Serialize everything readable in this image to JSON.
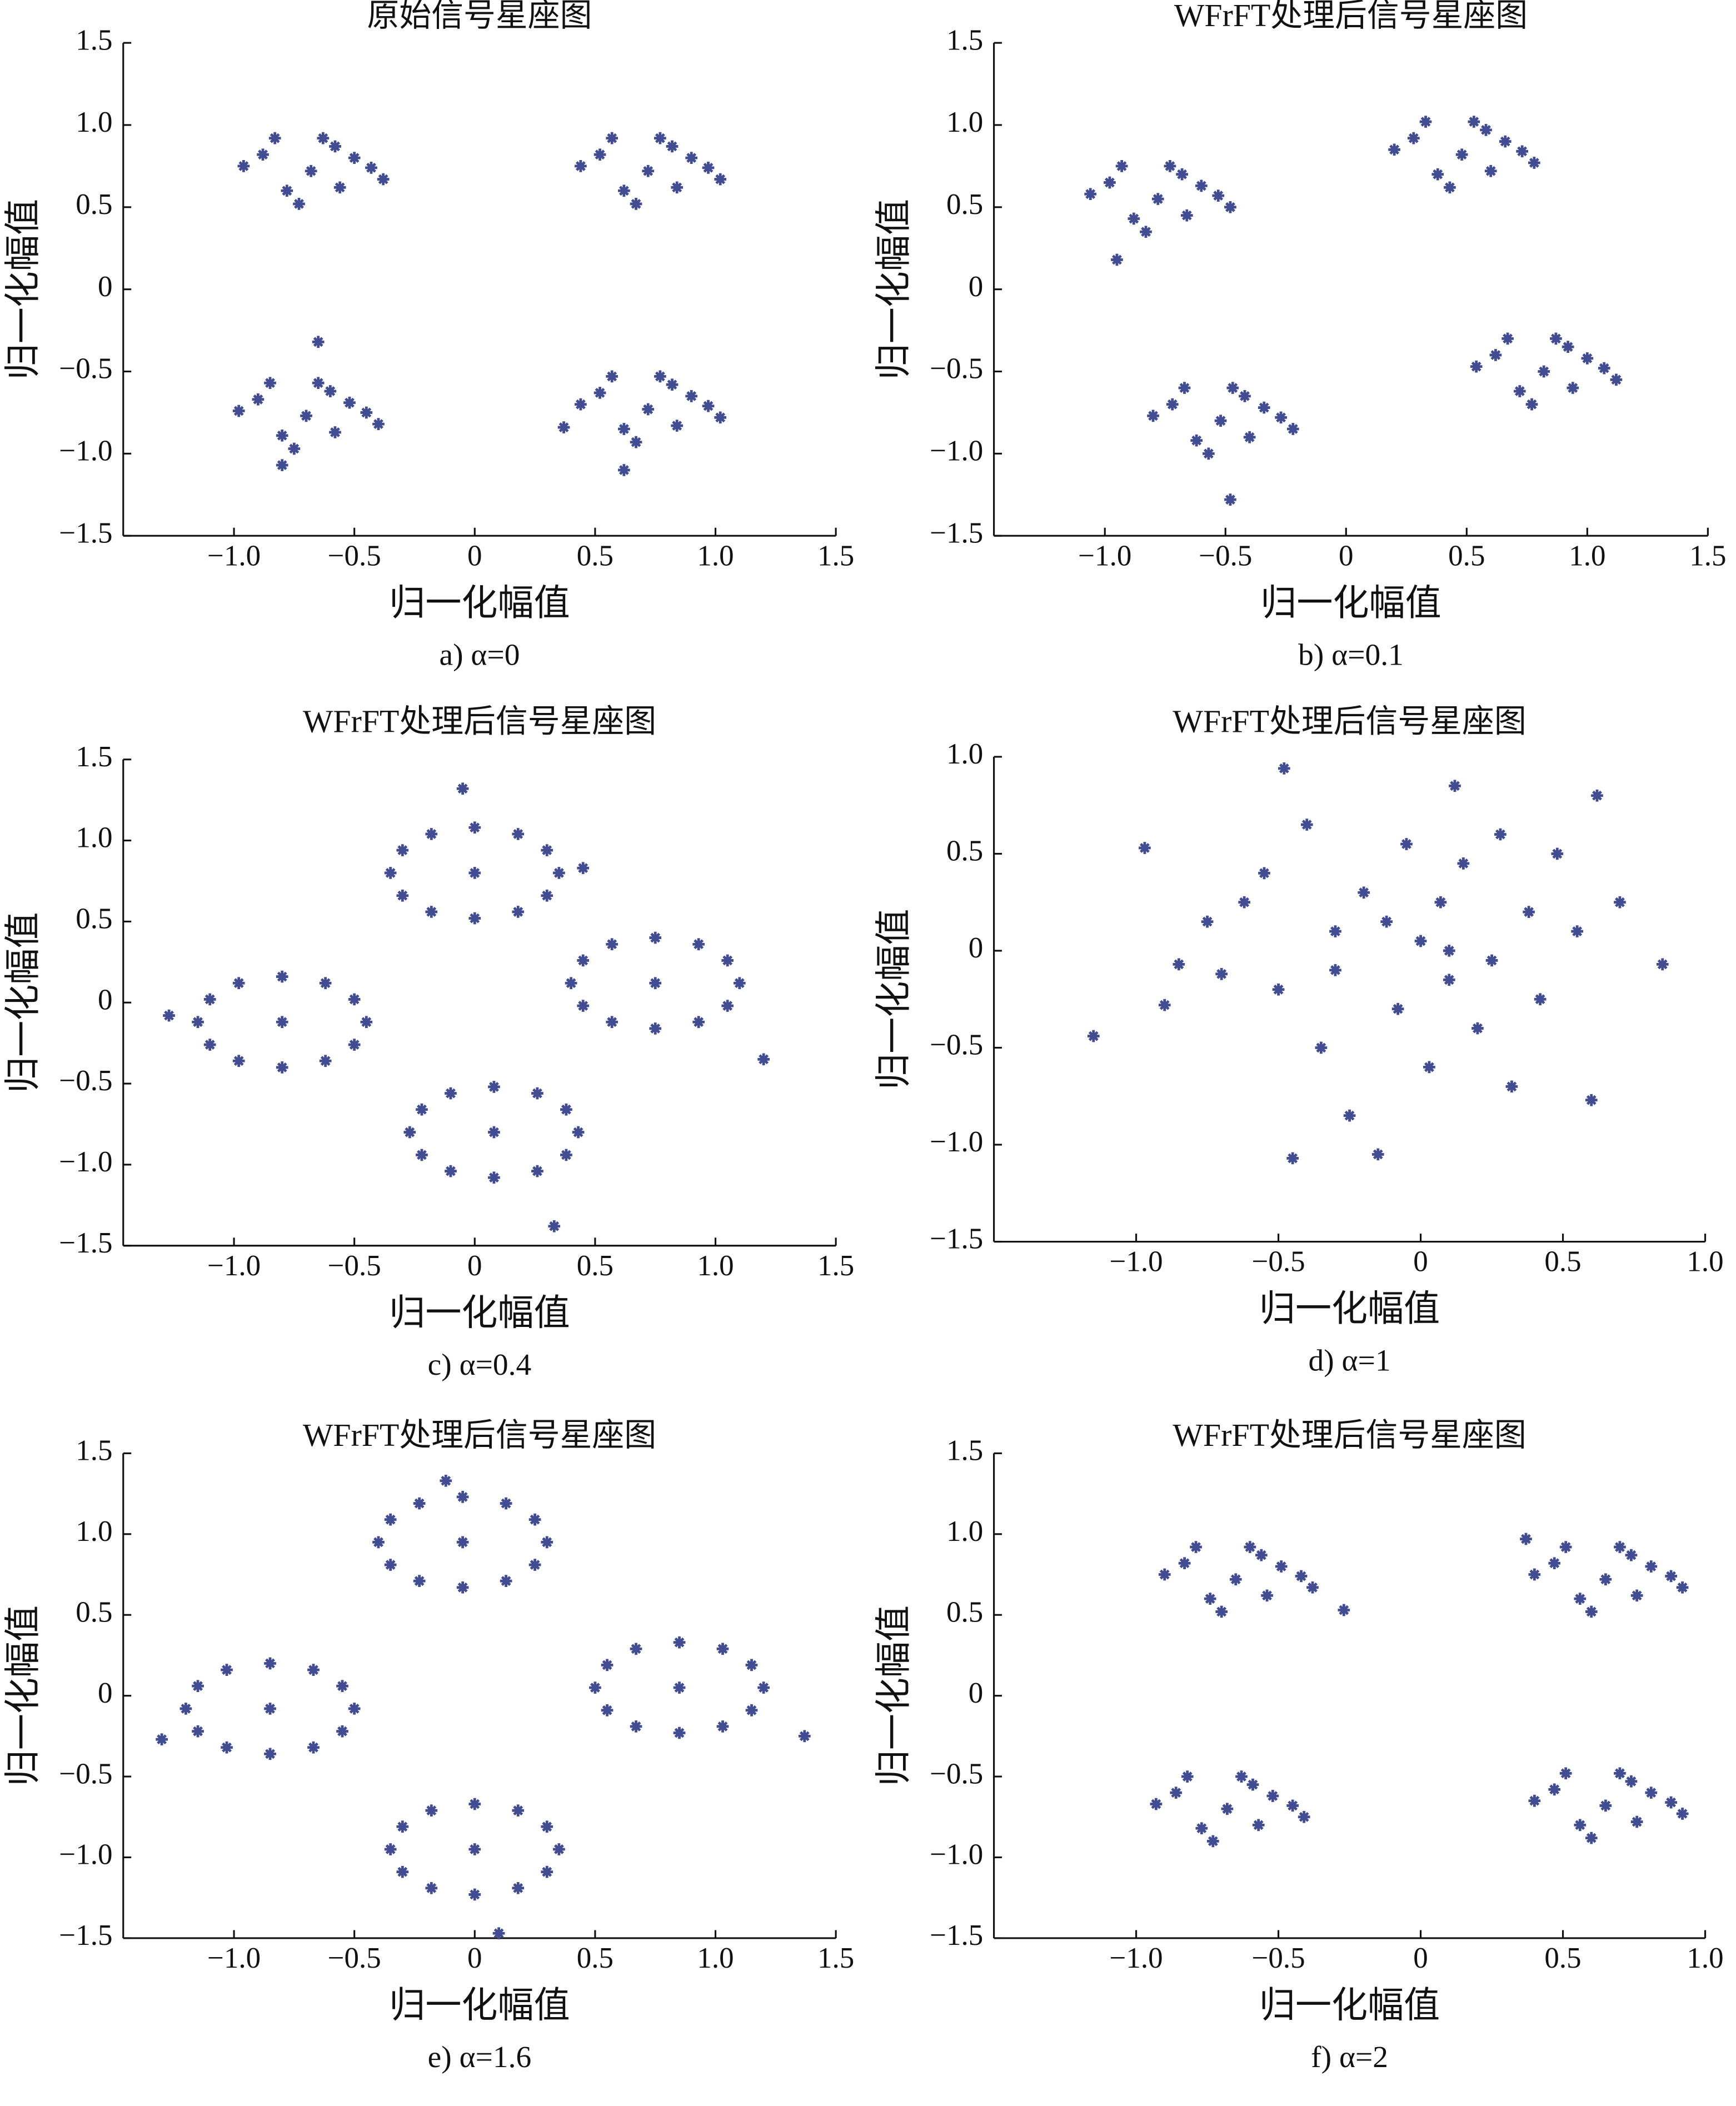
{
  "chart_data": [
    {
      "type": "scatter",
      "title": "原始信号星座图",
      "x_label": "归一化幅值",
      "y_label": "归一化幅值",
      "caption": "a) α=0",
      "color": "#414c91",
      "xlim": [
        -1.46,
        1.5
      ],
      "ylim": [
        -1.5,
        1.5
      ],
      "xticks": [
        {
          "value": -1,
          "label": "−1.0"
        },
        {
          "value": -0.5,
          "label": "−0.5"
        },
        0,
        0.5,
        {
          "value": 1,
          "label": "1.0"
        },
        1.5
      ],
      "yticks": [
        1.5,
        {
          "value": 1,
          "label": "1.0"
        },
        0.5,
        0,
        {
          "value": -0.5,
          "label": "−0.5"
        },
        {
          "value": -1,
          "label": "−1.0"
        },
        {
          "value": -1.5,
          "label": "−1.5"
        }
      ],
      "x": [
        -0.68,
        -0.88,
        -0.5,
        -0.78,
        -0.56,
        -0.43,
        -0.96,
        -0.63,
        -0.73,
        -0.38,
        -0.83,
        -0.58,
        0.72,
        0.52,
        0.9,
        0.62,
        0.84,
        0.97,
        0.44,
        0.77,
        0.67,
        1.02,
        0.57,
        0.82,
        -0.7,
        -0.9,
        -0.52,
        -0.8,
        -0.58,
        -0.45,
        -0.98,
        -0.65,
        -0.75,
        -0.4,
        -0.85,
        -0.6,
        -0.8,
        -0.65,
        0.72,
        0.52,
        0.9,
        0.62,
        0.84,
        0.97,
        0.44,
        0.77,
        0.67,
        1.02,
        0.57,
        0.82,
        0.37,
        0.62
      ],
      "values": [
        0.72,
        0.82,
        0.8,
        0.6,
        0.62,
        0.74,
        0.75,
        0.92,
        0.52,
        0.67,
        0.92,
        0.87,
        0.72,
        0.82,
        0.8,
        0.6,
        0.62,
        0.74,
        0.75,
        0.92,
        0.52,
        0.67,
        0.92,
        0.87,
        -0.77,
        -0.67,
        -0.69,
        -0.89,
        -0.87,
        -0.75,
        -0.74,
        -0.57,
        -0.97,
        -0.82,
        -0.57,
        -0.62,
        -1.07,
        -0.32,
        -0.73,
        -0.63,
        -0.65,
        -0.85,
        -0.83,
        -0.71,
        -0.7,
        -0.53,
        -0.93,
        -0.78,
        -0.53,
        -0.58,
        -0.84,
        -1.1
      ]
    },
    {
      "type": "scatter",
      "title": "WFrFT处理后信号星座图",
      "x_label": "归一化幅值",
      "y_label": "归一化幅值",
      "caption": "b) α=0.1",
      "color": "#414c91",
      "xlim": [
        -1.46,
        1.5
      ],
      "ylim": [
        -1.5,
        1.5
      ],
      "xticks": [
        {
          "value": -1,
          "label": "−1.0"
        },
        {
          "value": -0.5,
          "label": "−0.5"
        },
        0,
        0.5,
        {
          "value": 1,
          "label": "1.0"
        },
        1.5
      ],
      "yticks": [
        1.5,
        {
          "value": 1,
          "label": "1.0"
        },
        0.5,
        0,
        {
          "value": -0.5,
          "label": "−0.5"
        },
        {
          "value": -1,
          "label": "−1.0"
        },
        {
          "value": -1.5,
          "label": "−1.5"
        }
      ],
      "x": [
        -0.78,
        -0.98,
        -0.6,
        -0.88,
        -0.66,
        -0.53,
        -1.06,
        -0.73,
        -0.83,
        -0.48,
        -0.93,
        -0.68,
        -0.95,
        0.48,
        0.28,
        0.66,
        0.38,
        0.6,
        0.73,
        0.2,
        0.53,
        0.43,
        0.78,
        0.33,
        0.58,
        -0.52,
        -0.72,
        -0.34,
        -0.62,
        -0.4,
        -0.27,
        -0.8,
        -0.47,
        -0.57,
        -0.22,
        -0.67,
        -0.42,
        -0.48,
        0.82,
        0.62,
        1.0,
        0.72,
        0.94,
        1.07,
        0.54,
        0.87,
        0.77,
        1.12,
        0.67,
        0.92
      ],
      "values": [
        0.55,
        0.65,
        0.63,
        0.43,
        0.45,
        0.57,
        0.58,
        0.75,
        0.35,
        0.5,
        0.75,
        0.7,
        0.18,
        0.82,
        0.92,
        0.9,
        0.7,
        0.72,
        0.84,
        0.85,
        1.02,
        0.62,
        0.77,
        1.02,
        0.97,
        -0.8,
        -0.7,
        -0.72,
        -0.92,
        -0.9,
        -0.78,
        -0.77,
        -0.6,
        -1.0,
        -0.85,
        -0.6,
        -0.65,
        -1.28,
        -0.5,
        -0.4,
        -0.42,
        -0.62,
        -0.6,
        -0.48,
        -0.47,
        -0.3,
        -0.7,
        -0.55,
        -0.3,
        -0.35
      ]
    },
    {
      "type": "scatter",
      "title": "WFrFT处理后信号星座图",
      "x_label": "归一化幅值",
      "y_label": "归一化幅值",
      "caption": "c) α=0.4",
      "color": "#414c91",
      "xlim": [
        -1.46,
        1.5
      ],
      "ylim": [
        -1.5,
        1.5
      ],
      "xticks": [
        {
          "value": -1,
          "label": "−1.0"
        },
        {
          "value": -0.5,
          "label": "−0.5"
        },
        0,
        0.5,
        {
          "value": 1,
          "label": "1.0"
        },
        1.5
      ],
      "yticks": [
        1.5,
        {
          "value": 1,
          "label": "1.0"
        },
        0.5,
        0,
        {
          "value": -0.5,
          "label": "−0.5"
        },
        {
          "value": -1,
          "label": "−1.0"
        },
        {
          "value": -1.5,
          "label": "−1.5"
        }
      ],
      "x": [
        -0.45,
        -0.5,
        -0.62,
        -0.8,
        -0.98,
        -1.1,
        -1.15,
        -1.1,
        -0.98,
        -0.8,
        -0.62,
        -0.5,
        -0.8,
        -1.27,
        0.35,
        0.3,
        0.18,
        0,
        -0.18,
        -0.3,
        -0.35,
        -0.3,
        -0.18,
        0,
        0.18,
        0.3,
        0,
        -0.05,
        0.45,
        1.1,
        1.05,
        0.93,
        0.75,
        0.57,
        0.45,
        0.4,
        0.45,
        0.57,
        0.75,
        0.93,
        1.05,
        0.75,
        1.2,
        0.43,
        0.38,
        0.26,
        0.08,
        -0.1,
        -0.22,
        -0.27,
        -0.22,
        -0.1,
        0.08,
        0.26,
        0.38,
        0.08,
        0.33
      ],
      "values": [
        -0.12,
        0.02,
        0.12,
        0.16,
        0.12,
        0.02,
        -0.12,
        -0.26,
        -0.36,
        -0.4,
        -0.36,
        -0.26,
        -0.12,
        -0.08,
        0.8,
        0.94,
        1.04,
        1.08,
        1.04,
        0.94,
        0.8,
        0.66,
        0.56,
        0.52,
        0.56,
        0.66,
        0.8,
        1.32,
        0.83,
        0.12,
        0.26,
        0.36,
        0.4,
        0.36,
        0.26,
        0.12,
        -0.02,
        -0.12,
        -0.16,
        -0.12,
        -0.02,
        0.12,
        -0.35,
        -0.8,
        -0.66,
        -0.56,
        -0.52,
        -0.56,
        -0.66,
        -0.8,
        -0.94,
        -1.04,
        -1.08,
        -1.04,
        -0.94,
        -0.8,
        -1.38
      ]
    },
    {
      "type": "scatter",
      "title": "WFrFT处理后信号星座图",
      "x_label": "归一化幅值",
      "y_label": "归一化幅值",
      "caption": "d) α=1",
      "color": "#414c91",
      "xlim": [
        -1.5,
        1.0
      ],
      "ylim": [
        -1.5,
        1.0
      ],
      "xticks": [
        {
          "value": -1,
          "label": "−1.0"
        },
        {
          "value": -0.5,
          "label": "−0.5"
        },
        0,
        0.5,
        {
          "value": 1,
          "label": "1.0"
        }
      ],
      "yticks": [
        {
          "value": 1,
          "label": "1.0"
        },
        0.5,
        0,
        {
          "value": -0.5,
          "label": "−0.5"
        },
        {
          "value": -1,
          "label": "−1.0"
        },
        {
          "value": -1.5,
          "label": "−1.5"
        }
      ],
      "x": [
        -1.15,
        -0.97,
        -0.9,
        -0.85,
        -0.75,
        -0.7,
        -0.62,
        -0.55,
        -0.5,
        -0.48,
        -0.45,
        -0.4,
        -0.35,
        -0.3,
        -0.25,
        -0.2,
        -0.15,
        -0.12,
        -0.08,
        -0.05,
        0,
        0.03,
        0.07,
        0.1,
        0.12,
        0.15,
        0.2,
        0.25,
        0.28,
        0.32,
        0.38,
        0.42,
        0.48,
        0.55,
        0.6,
        0.62,
        0.7,
        0.85,
        0.1,
        -0.3
      ],
      "values": [
        -0.44,
        0.53,
        -0.28,
        -0.07,
        0.15,
        -0.12,
        0.25,
        0.4,
        -0.2,
        0.94,
        -1.07,
        0.65,
        -0.5,
        0.1,
        -0.85,
        0.3,
        -1.05,
        0.15,
        -0.3,
        0.55,
        0.05,
        -0.6,
        0.25,
        -0.15,
        0.85,
        0.45,
        -0.4,
        -0.05,
        0.6,
        -0.7,
        0.2,
        -0.25,
        0.5,
        0.1,
        -0.77,
        0.8,
        0.25,
        -0.07,
        0.0,
        -0.1
      ]
    },
    {
      "type": "scatter",
      "title": "WFrFT处理后信号星座图",
      "x_label": "归一化幅值",
      "y_label": "归一化幅值",
      "caption": "e) α=1.6",
      "color": "#414c91",
      "xlim": [
        -1.46,
        1.5
      ],
      "ylim": [
        -1.5,
        1.5
      ],
      "xticks": [
        {
          "value": -1,
          "label": "−1.0"
        },
        {
          "value": -0.5,
          "label": "−0.5"
        },
        0,
        0.5,
        {
          "value": 1,
          "label": "1.0"
        },
        1.5
      ],
      "yticks": [
        1.5,
        {
          "value": 1,
          "label": "1.0"
        },
        0.5,
        0,
        {
          "value": -0.5,
          "label": "−0.5"
        },
        {
          "value": -1,
          "label": "−1.0"
        },
        {
          "value": -1.5,
          "label": "−1.5"
        }
      ],
      "x": [
        -0.5,
        -0.55,
        -0.67,
        -0.85,
        -1.03,
        -1.15,
        -1.2,
        -1.15,
        -1.03,
        -0.85,
        -0.67,
        -0.55,
        -0.85,
        -1.3,
        0.3,
        0.25,
        0.13,
        -0.05,
        -0.23,
        -0.35,
        -0.4,
        -0.35,
        -0.23,
        -0.05,
        0.13,
        0.25,
        -0.05,
        -0.12,
        1.2,
        1.15,
        1.03,
        0.85,
        0.67,
        0.55,
        0.5,
        0.55,
        0.67,
        0.85,
        1.03,
        1.15,
        0.85,
        1.37,
        0.35,
        0.3,
        0.18,
        0,
        -0.18,
        -0.3,
        -0.35,
        -0.3,
        -0.18,
        0,
        0.18,
        0.3,
        0,
        0.1
      ],
      "values": [
        -0.08,
        0.06,
        0.16,
        0.2,
        0.16,
        0.06,
        -0.08,
        -0.22,
        -0.32,
        -0.36,
        -0.32,
        -0.22,
        -0.08,
        -0.27,
        0.95,
        1.09,
        1.19,
        1.23,
        1.19,
        1.09,
        0.95,
        0.81,
        0.71,
        0.67,
        0.71,
        0.81,
        0.95,
        1.33,
        0.05,
        0.19,
        0.29,
        0.33,
        0.29,
        0.19,
        0.05,
        -0.09,
        -0.19,
        -0.23,
        -0.19,
        -0.09,
        0.05,
        -0.25,
        -0.95,
        -0.81,
        -0.71,
        -0.67,
        -0.71,
        -0.81,
        -0.95,
        -1.09,
        -1.19,
        -1.23,
        -1.19,
        -1.09,
        -0.95,
        -1.47
      ]
    },
    {
      "type": "scatter",
      "title": "WFrFT处理后信号星座图",
      "x_label": "归一化幅值",
      "y_label": "归一化幅值",
      "caption": "f) α=2",
      "color": "#414c91",
      "xlim": [
        -1.5,
        1.0
      ],
      "ylim": [
        -1.5,
        1.5
      ],
      "xticks": [
        {
          "value": -1,
          "label": "−1.0"
        },
        {
          "value": -0.5,
          "label": "−0.5"
        },
        0,
        0.5,
        {
          "value": 1,
          "label": "1.0"
        }
      ],
      "yticks": [
        1.5,
        {
          "value": 1,
          "label": "1.0"
        },
        0.5,
        0,
        {
          "value": -0.5,
          "label": "−0.5"
        },
        {
          "value": -1,
          "label": "−1.0"
        },
        {
          "value": -1.5,
          "label": "−1.5"
        }
      ],
      "x": [
        -0.65,
        -0.83,
        -0.49,
        -0.74,
        -0.54,
        -0.42,
        -0.9,
        -0.6,
        -0.7,
        -0.38,
        -0.79,
        -0.56,
        -0.27,
        0.65,
        0.47,
        0.81,
        0.56,
        0.76,
        0.88,
        0.4,
        0.7,
        0.6,
        0.92,
        0.51,
        0.74,
        0.37,
        -0.68,
        -0.86,
        -0.52,
        -0.77,
        -0.57,
        -0.45,
        -0.93,
        -0.63,
        -0.73,
        -0.41,
        -0.82,
        -0.59,
        0.65,
        0.47,
        0.81,
        0.56,
        0.76,
        0.88,
        0.4,
        0.7,
        0.6,
        0.92,
        0.51,
        0.74
      ],
      "values": [
        0.72,
        0.82,
        0.8,
        0.6,
        0.62,
        0.74,
        0.75,
        0.92,
        0.52,
        0.67,
        0.92,
        0.87,
        0.53,
        0.72,
        0.82,
        0.8,
        0.6,
        0.62,
        0.74,
        0.75,
        0.92,
        0.52,
        0.67,
        0.92,
        0.87,
        0.97,
        -0.7,
        -0.6,
        -0.62,
        -0.82,
        -0.8,
        -0.68,
        -0.67,
        -0.5,
        -0.9,
        -0.75,
        -0.5,
        -0.55,
        -0.68,
        -0.58,
        -0.6,
        -0.8,
        -0.78,
        -0.66,
        -0.65,
        -0.48,
        -0.88,
        -0.73,
        -0.48,
        -0.53
      ]
    }
  ]
}
